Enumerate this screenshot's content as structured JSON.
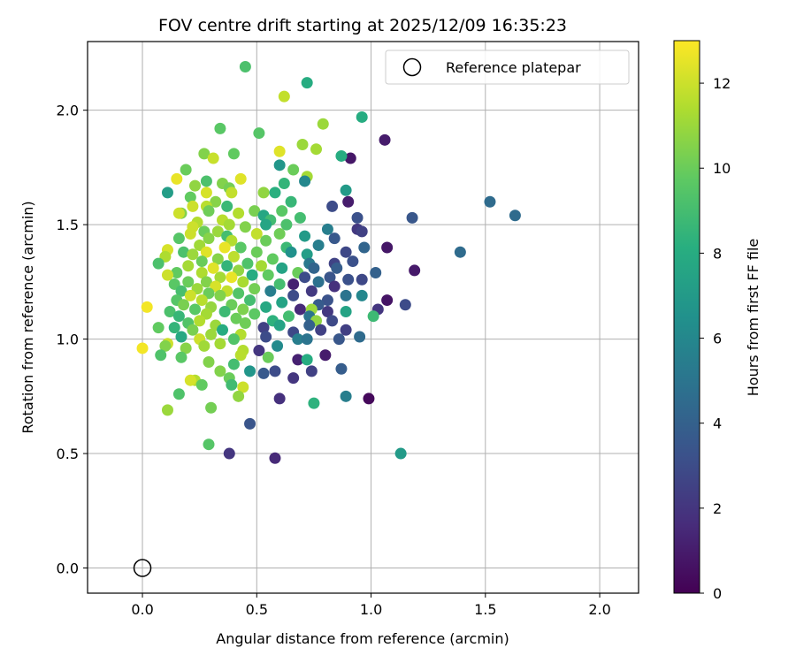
{
  "chart_data": {
    "type": "scatter",
    "title": "FOV centre drift starting at 2025/12/09 16:35:23",
    "xlabel": "Angular distance from reference (arcmin)",
    "ylabel": "Rotation from reference (arcmin)",
    "xlim": [
      -0.24,
      2.17
    ],
    "ylim": [
      -0.11,
      2.3
    ],
    "xticks": [
      0.0,
      0.5,
      1.0,
      1.5,
      2.0
    ],
    "xtick_labels": [
      "0.0",
      "0.5",
      "1.0",
      "1.5",
      "2.0"
    ],
    "yticks": [
      0.0,
      0.5,
      1.0,
      1.5,
      2.0
    ],
    "ytick_labels": [
      "0.0",
      "0.5",
      "1.0",
      "1.5",
      "2.0"
    ],
    "grid": true,
    "legend": {
      "position": "top-right",
      "label": "Reference platepar"
    },
    "reference_point": {
      "x": 0.0,
      "y": 0.0
    },
    "colorbar": {
      "label": "Hours from first FF file",
      "range": [
        0,
        13
      ],
      "ticks": [
        0,
        2,
        4,
        6,
        8,
        10,
        12
      ],
      "tick_labels": [
        "0",
        "2",
        "4",
        "6",
        "8",
        "10",
        "12"
      ],
      "colormap": "viridis"
    },
    "points": [
      [
        0.45,
        2.19,
        9.2
      ],
      [
        0.72,
        2.12,
        8.0
      ],
      [
        0.62,
        2.06,
        11.8
      ],
      [
        0.96,
        1.97,
        8.0
      ],
      [
        0.79,
        1.94,
        11.0
      ],
      [
        0.34,
        1.92,
        9.6
      ],
      [
        0.51,
        1.9,
        9.5
      ],
      [
        1.06,
        1.87,
        1.0
      ],
      [
        0.7,
        1.85,
        11.0
      ],
      [
        0.76,
        1.83,
        11.2
      ],
      [
        0.6,
        1.82,
        12.4
      ],
      [
        0.27,
        1.81,
        10.5
      ],
      [
        0.91,
        1.79,
        0.8
      ],
      [
        0.87,
        1.8,
        8.0
      ],
      [
        0.4,
        1.81,
        9.8
      ],
      [
        0.31,
        1.79,
        11.9
      ],
      [
        0.6,
        1.76,
        6.8
      ],
      [
        0.66,
        1.74,
        10.0
      ],
      [
        0.19,
        1.74,
        10.0
      ],
      [
        0.43,
        1.7,
        12.4
      ],
      [
        0.15,
        1.7,
        12.6
      ],
      [
        0.72,
        1.71,
        11.2
      ],
      [
        0.71,
        1.69,
        6.0
      ],
      [
        0.28,
        1.69,
        9.2
      ],
      [
        0.35,
        1.68,
        10.5
      ],
      [
        0.62,
        1.68,
        8.5
      ],
      [
        0.23,
        1.67,
        10.8
      ],
      [
        0.38,
        1.66,
        10.2
      ],
      [
        0.89,
        1.65,
        7.0
      ],
      [
        0.58,
        1.64,
        8.2
      ],
      [
        0.11,
        1.64,
        7.2
      ],
      [
        0.28,
        1.64,
        12.2
      ],
      [
        0.53,
        1.64,
        10.8
      ],
      [
        0.39,
        1.64,
        11.8
      ],
      [
        0.21,
        1.62,
        9.8
      ],
      [
        0.32,
        1.6,
        10.6
      ],
      [
        0.65,
        1.6,
        8.6
      ],
      [
        0.9,
        1.6,
        1.0
      ],
      [
        0.22,
        1.58,
        12.0
      ],
      [
        0.28,
        1.58,
        11.6
      ],
      [
        0.37,
        1.58,
        8.7
      ],
      [
        0.83,
        1.58,
        3.0
      ],
      [
        1.52,
        1.6,
        4.5
      ],
      [
        0.49,
        1.56,
        10.3
      ],
      [
        0.61,
        1.56,
        9.6
      ],
      [
        0.17,
        1.55,
        10.5
      ],
      [
        0.29,
        1.56,
        10.1
      ],
      [
        0.42,
        1.55,
        11.5
      ],
      [
        0.53,
        1.54,
        7.7
      ],
      [
        0.16,
        1.55,
        12.0
      ],
      [
        1.18,
        1.53,
        3.5
      ],
      [
        1.63,
        1.54,
        4.5
      ],
      [
        0.69,
        1.53,
        9.0
      ],
      [
        0.94,
        1.53,
        3.2
      ],
      [
        0.35,
        1.52,
        11.6
      ],
      [
        0.56,
        1.52,
        8.9
      ],
      [
        0.24,
        1.51,
        11.5
      ],
      [
        0.38,
        1.5,
        11.2
      ],
      [
        0.45,
        1.49,
        10.5
      ],
      [
        0.54,
        1.5,
        7.6
      ],
      [
        0.63,
        1.5,
        9.2
      ],
      [
        0.22,
        1.49,
        12.0
      ],
      [
        0.81,
        1.48,
        5.5
      ],
      [
        0.94,
        1.48,
        2.1
      ],
      [
        0.27,
        1.47,
        10.0
      ],
      [
        0.33,
        1.47,
        11.0
      ],
      [
        0.37,
        1.45,
        9.0
      ],
      [
        0.5,
        1.46,
        11.8
      ],
      [
        0.21,
        1.46,
        12.0
      ],
      [
        0.96,
        1.47,
        2.5
      ],
      [
        0.6,
        1.46,
        10.1
      ],
      [
        0.71,
        1.45,
        7.0
      ],
      [
        0.16,
        1.44,
        9.5
      ],
      [
        0.29,
        1.44,
        10.6
      ],
      [
        0.39,
        1.43,
        11.5
      ],
      [
        0.54,
        1.43,
        10.0
      ],
      [
        0.84,
        1.44,
        3.6
      ],
      [
        0.77,
        1.41,
        5.5
      ],
      [
        0.25,
        1.41,
        11.1
      ],
      [
        1.07,
        1.4,
        0.8
      ],
      [
        0.43,
        1.4,
        9.6
      ],
      [
        0.63,
        1.4,
        8.7
      ],
      [
        0.11,
        1.39,
        12.2
      ],
      [
        0.36,
        1.4,
        12.6
      ],
      [
        0.97,
        1.4,
        4.2
      ],
      [
        0.18,
        1.38,
        9.2
      ],
      [
        0.28,
        1.38,
        12.4
      ],
      [
        0.5,
        1.38,
        10.0
      ],
      [
        0.65,
        1.38,
        6.5
      ],
      [
        0.72,
        1.37,
        7.2
      ],
      [
        0.89,
        1.38,
        2.8
      ],
      [
        0.22,
        1.37,
        11.0
      ],
      [
        0.4,
        1.36,
        11.7
      ],
      [
        1.39,
        1.38,
        4.5
      ],
      [
        0.1,
        1.36,
        11.4
      ],
      [
        0.33,
        1.35,
        10.6
      ],
      [
        0.57,
        1.35,
        9.8
      ],
      [
        0.26,
        1.34,
        10.0
      ],
      [
        0.46,
        1.33,
        9.3
      ],
      [
        0.73,
        1.33,
        5.2
      ],
      [
        0.84,
        1.33,
        2.6
      ],
      [
        0.92,
        1.34,
        3.2
      ],
      [
        0.2,
        1.32,
        11.2
      ],
      [
        0.37,
        1.32,
        8.5
      ],
      [
        0.52,
        1.32,
        11.2
      ],
      [
        0.07,
        1.33,
        9.2
      ],
      [
        0.31,
        1.31,
        12.4
      ],
      [
        0.61,
        1.31,
        7.5
      ],
      [
        0.75,
        1.31,
        4.2
      ],
      [
        0.85,
        1.31,
        3.8
      ],
      [
        1.19,
        1.3,
        0.9
      ],
      [
        0.15,
        1.29,
        9.8
      ],
      [
        0.42,
        1.3,
        10.8
      ],
      [
        0.26,
        1.29,
        11.4
      ],
      [
        0.68,
        1.29,
        10.0
      ],
      [
        1.02,
        1.29,
        4.0
      ],
      [
        0.11,
        1.28,
        12.0
      ],
      [
        0.34,
        1.27,
        11.2
      ],
      [
        0.48,
        1.28,
        8.0
      ],
      [
        0.55,
        1.28,
        9.8
      ],
      [
        0.71,
        1.27,
        3.0
      ],
      [
        0.82,
        1.27,
        3.4
      ],
      [
        0.9,
        1.26,
        3.2
      ],
      [
        0.2,
        1.25,
        10.0
      ],
      [
        0.39,
        1.27,
        12.6
      ],
      [
        0.96,
        1.26,
        2.8
      ],
      [
        0.28,
        1.25,
        10.5
      ],
      [
        0.44,
        1.25,
        11.3
      ],
      [
        0.6,
        1.24,
        9.0
      ],
      [
        0.14,
        1.24,
        9.6
      ],
      [
        0.77,
        1.25,
        4.8
      ],
      [
        0.66,
        1.24,
        1.2
      ],
      [
        0.32,
        1.23,
        12.2
      ],
      [
        0.84,
        1.23,
        1.8
      ],
      [
        0.24,
        1.22,
        11.0
      ],
      [
        0.49,
        1.22,
        10.2
      ],
      [
        0.17,
        1.21,
        9.1
      ],
      [
        0.37,
        1.21,
        11.8
      ],
      [
        0.74,
        1.21,
        2.2
      ],
      [
        0.29,
        1.2,
        10.0
      ],
      [
        0.42,
        1.2,
        9.4
      ],
      [
        0.56,
        1.21,
        5.5
      ],
      [
        0.66,
        1.19,
        3.0
      ],
      [
        0.89,
        1.19,
        5.0
      ],
      [
        0.96,
        1.19,
        6.0
      ],
      [
        0.21,
        1.19,
        12.0
      ],
      [
        0.34,
        1.19,
        10.5
      ],
      [
        0.15,
        1.17,
        9.5
      ],
      [
        0.26,
        1.17,
        11.6
      ],
      [
        0.47,
        1.17,
        9.0
      ],
      [
        0.81,
        1.17,
        3.3
      ],
      [
        1.07,
        1.17,
        0.7
      ],
      [
        0.61,
        1.16,
        7.5
      ],
      [
        0.18,
        1.15,
        10.3
      ],
      [
        0.39,
        1.15,
        10.0
      ],
      [
        0.77,
        1.15,
        3.7
      ],
      [
        1.15,
        1.15,
        3.0
      ],
      [
        0.02,
        1.14,
        12.8
      ],
      [
        0.3,
        1.14,
        10.9
      ],
      [
        0.54,
        1.14,
        7.8
      ],
      [
        0.69,
        1.13,
        1.5
      ],
      [
        0.23,
        1.13,
        9.6
      ],
      [
        0.44,
        1.13,
        10.4
      ],
      [
        1.03,
        1.13,
        2.0
      ],
      [
        0.74,
        1.13,
        11.0
      ],
      [
        0.12,
        1.12,
        9.2
      ],
      [
        0.36,
        1.12,
        8.8
      ],
      [
        0.28,
        1.11,
        11.2
      ],
      [
        0.49,
        1.11,
        9.7
      ],
      [
        0.81,
        1.12,
        2.1
      ],
      [
        0.16,
        1.1,
        8.6
      ],
      [
        0.64,
        1.1,
        9.0
      ],
      [
        0.73,
        1.1,
        5.0
      ],
      [
        0.89,
        1.12,
        7.5
      ],
      [
        0.41,
        1.09,
        10.0
      ],
      [
        0.25,
        1.08,
        11.5
      ],
      [
        0.57,
        1.08,
        8.3
      ],
      [
        0.76,
        1.08,
        10.8
      ],
      [
        0.83,
        1.08,
        2.9
      ],
      [
        0.2,
        1.07,
        9.4
      ],
      [
        0.45,
        1.07,
        10.1
      ],
      [
        1.01,
        1.1,
        8.8
      ],
      [
        0.32,
        1.06,
        11.0
      ],
      [
        0.6,
        1.06,
        7.5
      ],
      [
        0.73,
        1.06,
        4.0
      ],
      [
        0.14,
        1.05,
        8.5
      ],
      [
        0.35,
        1.04,
        8.0
      ],
      [
        0.53,
        1.05,
        2.5
      ],
      [
        0.89,
        1.04,
        2.4
      ],
      [
        0.07,
        1.05,
        9.8
      ],
      [
        0.22,
        1.04,
        10.3
      ],
      [
        0.66,
        1.03,
        2.8
      ],
      [
        0.43,
        1.02,
        11.5
      ],
      [
        0.78,
        1.04,
        2.5
      ],
      [
        0.3,
        1.02,
        11.0
      ],
      [
        0.17,
        1.01,
        7.8
      ],
      [
        0.54,
        1.01,
        3.0
      ],
      [
        0.95,
        1.01,
        4.5
      ],
      [
        0.25,
        1.0,
        12.0
      ],
      [
        0.68,
        1.0,
        5.5
      ],
      [
        0.4,
        1.0,
        9.4
      ],
      [
        0.11,
        0.98,
        12.0
      ],
      [
        0.72,
        1.0,
        5.0
      ],
      [
        0.86,
        1.0,
        3.5
      ],
      [
        0.34,
        0.98,
        11.2
      ],
      [
        0.59,
        0.97,
        6.2
      ],
      [
        0.0,
        0.96,
        12.8
      ],
      [
        0.19,
        0.96,
        10.6
      ],
      [
        0.27,
        0.97,
        11.1
      ],
      [
        0.44,
        0.95,
        11.5
      ],
      [
        0.1,
        0.97,
        10.5
      ],
      [
        0.51,
        0.95,
        2.0
      ],
      [
        0.43,
        0.93,
        11.6
      ],
      [
        0.08,
        0.93,
        9.3
      ],
      [
        0.55,
        0.92,
        10.0
      ],
      [
        0.8,
        0.93,
        1.0
      ],
      [
        0.68,
        0.91,
        1.2
      ],
      [
        0.17,
        0.92,
        9.6
      ],
      [
        0.29,
        0.9,
        10.5
      ],
      [
        0.72,
        0.91,
        8.0
      ],
      [
        0.47,
        0.86,
        6.8
      ],
      [
        0.53,
        0.85,
        3.6
      ],
      [
        0.58,
        0.86,
        3.0
      ],
      [
        0.4,
        0.89,
        9.0
      ],
      [
        0.74,
        0.86,
        2.5
      ],
      [
        0.87,
        0.87,
        3.8
      ],
      [
        0.34,
        0.86,
        10.5
      ],
      [
        0.38,
        0.83,
        10.0
      ],
      [
        0.23,
        0.82,
        11.5
      ],
      [
        0.66,
        0.83,
        2.0
      ],
      [
        0.26,
        0.8,
        9.8
      ],
      [
        0.21,
        0.82,
        12.2
      ],
      [
        0.44,
        0.79,
        12.0
      ],
      [
        0.39,
        0.8,
        8.9
      ],
      [
        0.16,
        0.76,
        9.3
      ],
      [
        0.42,
        0.75,
        10.8
      ],
      [
        0.6,
        0.74,
        1.8
      ],
      [
        0.89,
        0.75,
        5.5
      ],
      [
        0.75,
        0.72,
        8.3
      ],
      [
        0.99,
        0.74,
        0.3
      ],
      [
        0.3,
        0.7,
        10.2
      ],
      [
        0.11,
        0.69,
        11.0
      ],
      [
        0.47,
        0.63,
        3.4
      ],
      [
        0.29,
        0.54,
        9.5
      ],
      [
        1.13,
        0.5,
        7.0
      ],
      [
        0.38,
        0.5,
        2.0
      ],
      [
        0.58,
        0.48,
        1.5
      ]
    ]
  }
}
